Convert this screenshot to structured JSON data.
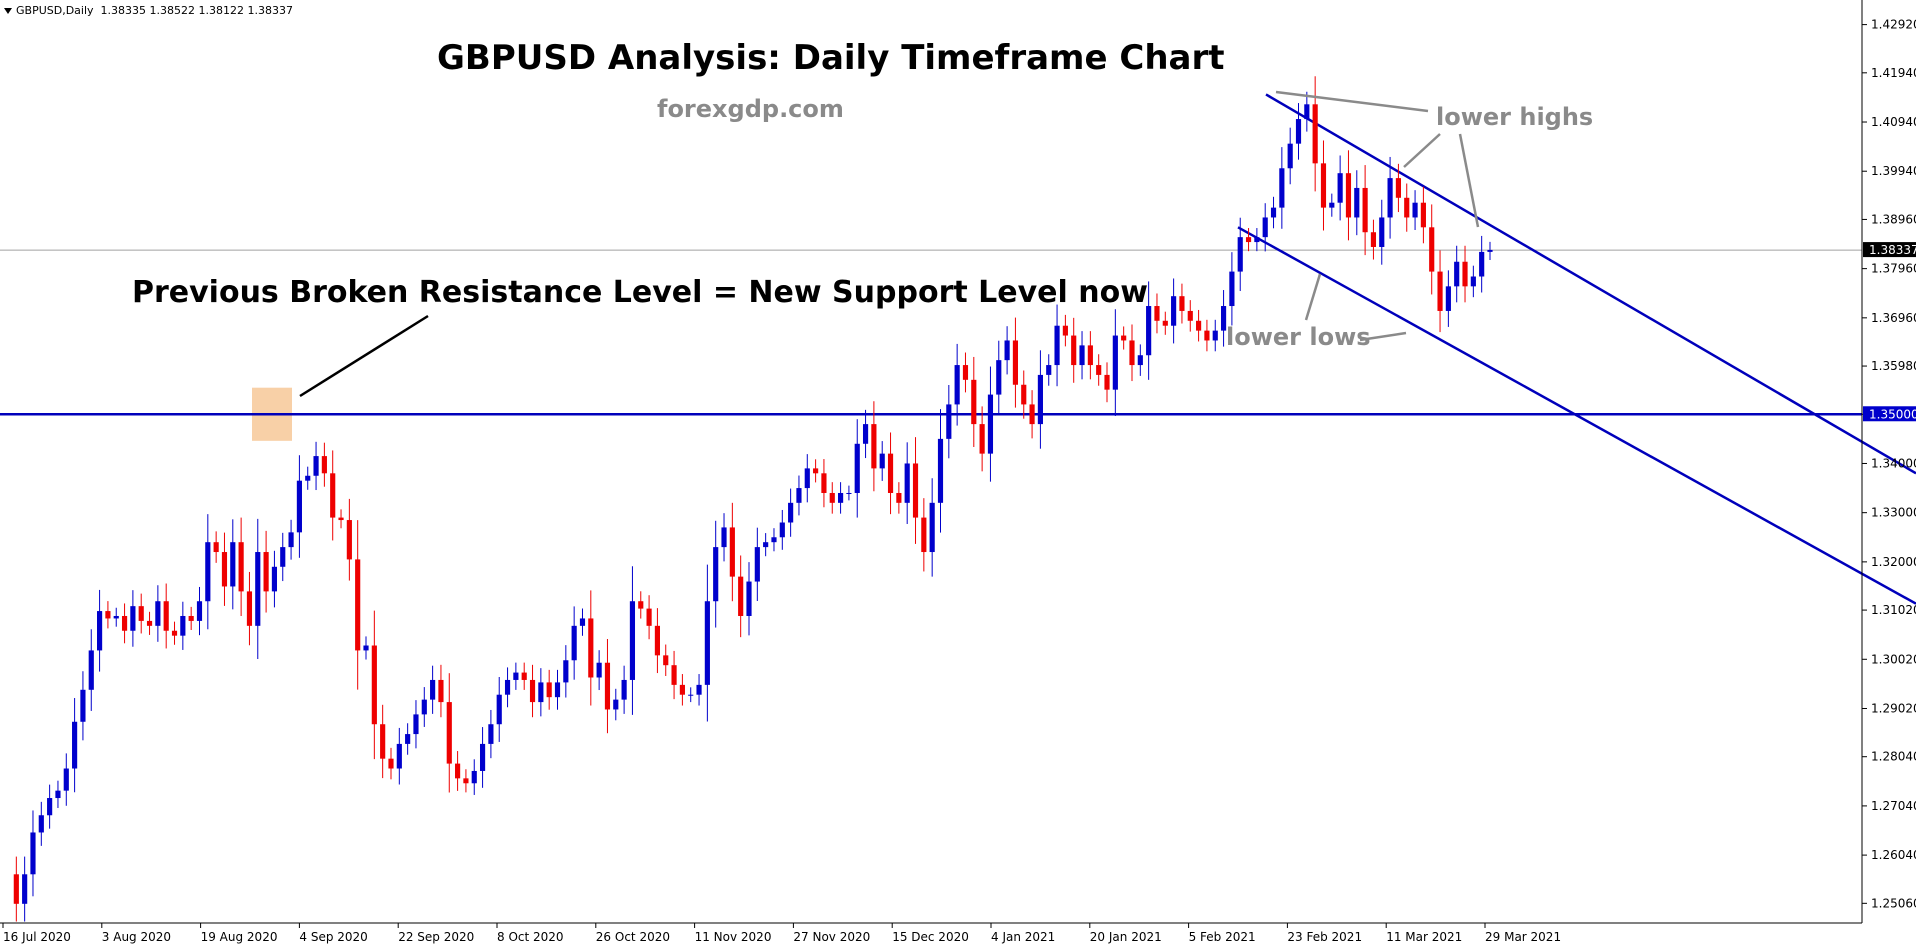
{
  "info": {
    "symbol_tf": "GBPUSD,Daily",
    "ohlc": "1.38335 1.38522 1.38122 1.38337"
  },
  "annotations": {
    "title": "GBPUSD Analysis: Daily Timeframe Chart",
    "site": "forexgdp.com",
    "support_text": "Previous Broken Resistance Level = New Support Level now",
    "lower_highs": "lower highs",
    "lower_lows": "lower lows"
  },
  "colors": {
    "bull": "#0000cc",
    "bear": "#ee0000",
    "line": "#0000bb",
    "highlight": "#f7c898",
    "price_tag_bg": "#000000",
    "support_tag_bg": "#0000cc"
  },
  "chart_data": {
    "type": "candlestick",
    "symbol": "GBPUSD",
    "timeframe": "Daily",
    "y_range": [
      1.2466,
      1.4342
    ],
    "y_ticks": [
      "1.42920",
      "1.41940",
      "1.40940",
      "1.39940",
      "1.38960",
      "1.37960",
      "1.36960",
      "1.35980",
      "1.35000",
      "1.34000",
      "1.33000",
      "1.32000",
      "1.31020",
      "1.30020",
      "1.29020",
      "1.28040",
      "1.27040",
      "1.26040",
      "1.25060"
    ],
    "x_ticks": [
      "16 Jul 2020",
      "3 Aug 2020",
      "19 Aug 2020",
      "4 Sep 2020",
      "22 Sep 2020",
      "8 Oct 2020",
      "26 Oct 2020",
      "11 Nov 2020",
      "27 Nov 2020",
      "15 Dec 2020",
      "4 Jan 2021",
      "20 Jan 2021",
      "5 Feb 2021",
      "23 Feb 2021",
      "11 Mar 2021",
      "29 Mar 2021"
    ],
    "current_price": "1.38337",
    "current_price_value": 1.38337,
    "support_level": "1.35000",
    "support_level_value": 1.35,
    "closes": [
      1.2565,
      1.2505,
      1.2565,
      1.265,
      1.2685,
      1.272,
      1.2735,
      1.278,
      1.2875,
      1.294,
      1.302,
      1.31,
      1.3085,
      1.309,
      1.306,
      1.311,
      1.308,
      1.307,
      1.312,
      1.306,
      1.305,
      1.309,
      1.308,
      1.312,
      1.324,
      1.322,
      1.315,
      1.324,
      1.314,
      1.307,
      1.322,
      1.314,
      1.319,
      1.323,
      1.326,
      1.3365,
      1.3375,
      1.3415,
      1.338,
      1.329,
      1.3285,
      1.3205,
      1.302,
      1.303,
      1.287,
      1.28,
      1.278,
      1.283,
      1.285,
      1.289,
      1.292,
      1.296,
      1.2915,
      1.279,
      1.276,
      1.275,
      1.2775,
      1.283,
      1.287,
      1.293,
      1.296,
      1.2975,
      1.296,
      1.2915,
      1.2955,
      1.2925,
      1.2955,
      1.3,
      1.307,
      1.3085,
      1.2965,
      1.2995,
      1.29,
      1.292,
      1.296,
      1.312,
      1.3105,
      1.307,
      1.301,
      1.299,
      1.295,
      1.293,
      1.293,
      1.295,
      1.312,
      1.323,
      1.327,
      1.317,
      1.309,
      1.316,
      1.323,
      1.324,
      1.325,
      1.328,
      1.332,
      1.335,
      1.339,
      1.338,
      1.334,
      1.332,
      1.334,
      1.334,
      1.344,
      1.348,
      1.339,
      1.342,
      1.334,
      1.332,
      1.34,
      1.329,
      1.322,
      1.332,
      1.345,
      1.352,
      1.36,
      1.357,
      1.348,
      1.342,
      1.354,
      1.361,
      1.365,
      1.356,
      1.352,
      1.348,
      1.358,
      1.36,
      1.368,
      1.366,
      1.36,
      1.364,
      1.36,
      1.358,
      1.355,
      1.366,
      1.365,
      1.36,
      1.362,
      1.372,
      1.369,
      1.368,
      1.374,
      1.371,
      1.369,
      1.367,
      1.365,
      1.367,
      1.372,
      1.379,
      1.386,
      1.385,
      1.386,
      1.39,
      1.392,
      1.4,
      1.405,
      1.41,
      1.413,
      1.401,
      1.392,
      1.393,
      1.399,
      1.39,
      1.396,
      1.387,
      1.384,
      1.39,
      1.398,
      1.394,
      1.39,
      1.393,
      1.388,
      1.379,
      1.371,
      1.376,
      1.381,
      1.376,
      1.378,
      1.383,
      1.3834
    ]
  }
}
